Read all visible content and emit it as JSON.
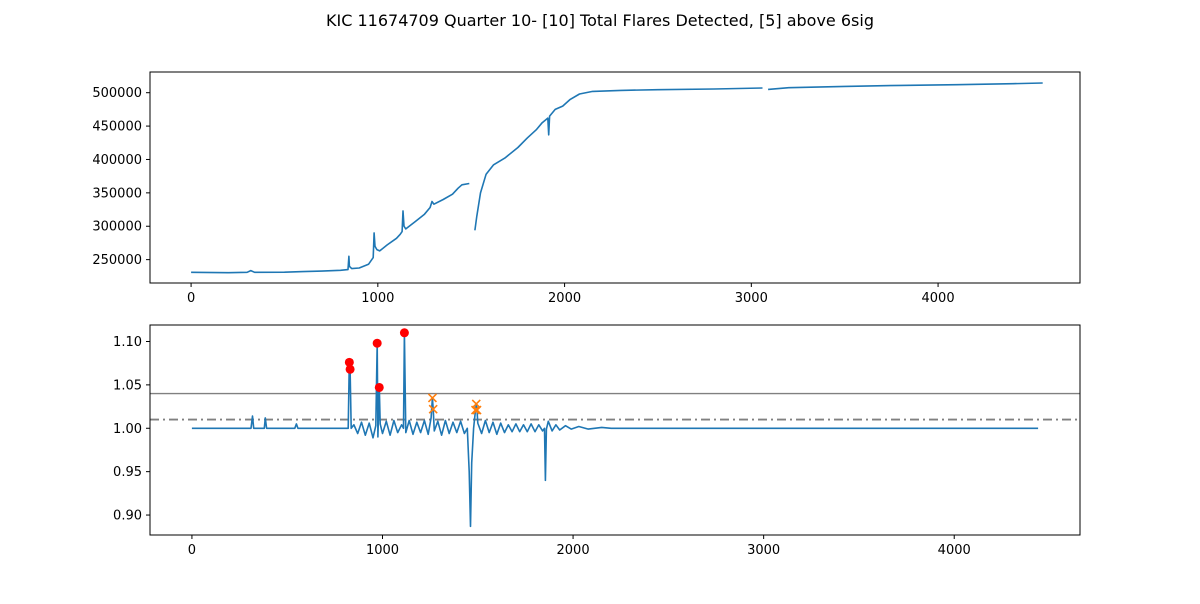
{
  "figure": {
    "title": "KIC 11674709 Quarter 10- [10] Total Flares Detected, [5] above 6sig"
  },
  "colors": {
    "series": "#1f77b4",
    "strong_flare": "#ff0000",
    "weak_flare": "#ff7f0e",
    "threshold": "#808080",
    "frame": "#000000"
  },
  "chart_data": [
    {
      "type": "line",
      "panel": "top",
      "title": "",
      "xlabel": "",
      "ylabel": "",
      "xlim": [
        -220,
        4760
      ],
      "ylim": [
        215000,
        531000
      ],
      "xticks": [
        0,
        1000,
        2000,
        3000,
        4000
      ],
      "yticks": [
        250000,
        300000,
        350000,
        400000,
        450000,
        500000
      ],
      "grid": false,
      "series": [
        {
          "segments": [
            [
              [
                0,
                231000
              ],
              [
                200,
                230500
              ],
              [
                300,
                231000
              ],
              [
                320,
                233500
              ],
              [
                340,
                231000
              ],
              [
                500,
                231200
              ],
              [
                600,
                232000
              ],
              [
                700,
                232800
              ],
              [
                800,
                234000
              ],
              [
                840,
                235000
              ],
              [
                845,
                255000
              ],
              [
                848,
                240000
              ],
              [
                860,
                236500
              ],
              [
                900,
                237500
              ],
              [
                950,
                243000
              ],
              [
                975,
                253000
              ],
              [
                980,
                290000
              ],
              [
                985,
                270000
              ],
              [
                995,
                265000
              ],
              [
                1010,
                263000
              ],
              [
                1050,
                272000
              ],
              [
                1100,
                282000
              ],
              [
                1120,
                288000
              ],
              [
                1130,
                292000
              ],
              [
                1135,
                323000
              ],
              [
                1140,
                300000
              ],
              [
                1150,
                296000
              ],
              [
                1200,
                307000
              ],
              [
                1250,
                318000
              ],
              [
                1280,
                328000
              ],
              [
                1290,
                337000
              ],
              [
                1300,
                333000
              ],
              [
                1350,
                340000
              ],
              [
                1400,
                348000
              ],
              [
                1430,
                357000
              ],
              [
                1450,
                362000
              ],
              [
                1490,
                364000
              ]
            ],
            [
              [
                1520,
                294000
              ],
              [
                1530,
                315000
              ],
              [
                1550,
                350000
              ],
              [
                1580,
                378000
              ],
              [
                1620,
                392000
              ],
              [
                1680,
                402000
              ],
              [
                1750,
                418000
              ],
              [
                1800,
                432000
              ],
              [
                1850,
                445000
              ],
              [
                1880,
                455000
              ],
              [
                1910,
                462000
              ],
              [
                1915,
                437000
              ],
              [
                1920,
                465000
              ],
              [
                1950,
                475000
              ],
              [
                1990,
                480000
              ],
              [
                2030,
                490000
              ],
              [
                2080,
                498000
              ],
              [
                2150,
                502000
              ],
              [
                2300,
                503500
              ],
              [
                2500,
                504500
              ],
              [
                2800,
                505500
              ],
              [
                3060,
                507000
              ]
            ],
            [
              [
                3090,
                505000
              ],
              [
                3200,
                507500
              ],
              [
                3500,
                509500
              ],
              [
                3800,
                511000
              ],
              [
                4100,
                512000
              ],
              [
                4400,
                513500
              ],
              [
                4560,
                514500
              ]
            ]
          ]
        }
      ]
    },
    {
      "type": "line",
      "panel": "bottom",
      "title": "",
      "xlabel": "",
      "ylabel": "",
      "xlim": [
        -220,
        4660
      ],
      "ylim": [
        0.877,
        1.119
      ],
      "xticks": [
        0,
        1000,
        2000,
        3000,
        4000
      ],
      "yticks": [
        0.9,
        0.95,
        1.0,
        1.05,
        1.1
      ],
      "grid": false,
      "hlines": [
        {
          "y": 1.04,
          "style": "solid"
        },
        {
          "y": 1.01,
          "style": "dashdot"
        }
      ],
      "series": [
        {
          "points": [
            [
              0,
              1.0
            ],
            [
              310,
              1.0
            ],
            [
              318,
              1.014
            ],
            [
              324,
              1.0
            ],
            [
              380,
              1.0
            ],
            [
              385,
              1.012
            ],
            [
              392,
              1.0
            ],
            [
              540,
              1.0
            ],
            [
              548,
              1.005
            ],
            [
              556,
              1.0
            ],
            [
              820,
              1.0
            ],
            [
              826,
              1.076
            ],
            [
              830,
              1.068
            ],
            [
              836,
              1.0
            ],
            [
              850,
              1.004
            ],
            [
              870,
              0.994
            ],
            [
              890,
              1.007
            ],
            [
              910,
              0.992
            ],
            [
              930,
              1.006
            ],
            [
              950,
              0.989
            ],
            [
              965,
              1.003
            ],
            [
              972,
              1.098
            ],
            [
              976,
              0.99
            ],
            [
              983,
              1.047
            ],
            [
              988,
              1.005
            ],
            [
              1000,
              0.994
            ],
            [
              1020,
              1.008
            ],
            [
              1040,
              0.992
            ],
            [
              1060,
              1.009
            ],
            [
              1080,
              0.995
            ],
            [
              1100,
              1.004
            ],
            [
              1110,
              1.0
            ],
            [
              1115,
              1.11
            ],
            [
              1122,
              0.995
            ],
            [
              1140,
              1.009
            ],
            [
              1160,
              0.993
            ],
            [
              1180,
              1.007
            ],
            [
              1200,
              0.995
            ],
            [
              1220,
              1.009
            ],
            [
              1240,
              0.993
            ],
            [
              1255,
              1.012
            ],
            [
              1262,
              1.035
            ],
            [
              1266,
              1.022
            ],
            [
              1272,
              0.997
            ],
            [
              1290,
              1.008
            ],
            [
              1310,
              0.992
            ],
            [
              1330,
              1.009
            ],
            [
              1350,
              0.994
            ],
            [
              1370,
              1.007
            ],
            [
              1390,
              0.995
            ],
            [
              1410,
              1.008
            ],
            [
              1430,
              0.994
            ],
            [
              1445,
              1.0
            ],
            [
              1455,
              0.95
            ],
            [
              1462,
              0.887
            ],
            [
              1468,
              0.96
            ],
            [
              1478,
              1.0
            ],
            [
              1488,
              1.021
            ],
            [
              1492,
              1.028
            ],
            [
              1496,
              1.021
            ],
            [
              1500,
              1.006
            ],
            [
              1520,
              0.994
            ],
            [
              1540,
              1.009
            ],
            [
              1560,
              0.995
            ],
            [
              1580,
              1.007
            ],
            [
              1600,
              0.993
            ],
            [
              1620,
              1.006
            ],
            [
              1640,
              0.995
            ],
            [
              1660,
              1.004
            ],
            [
              1680,
              0.996
            ],
            [
              1700,
              1.005
            ],
            [
              1720,
              0.996
            ],
            [
              1740,
              1.004
            ],
            [
              1760,
              0.996
            ],
            [
              1780,
              1.005
            ],
            [
              1800,
              0.996
            ],
            [
              1820,
              1.004
            ],
            [
              1840,
              0.997
            ],
            [
              1850,
              1.0
            ],
            [
              1855,
              0.94
            ],
            [
              1860,
              0.999
            ],
            [
              1870,
              1.008
            ],
            [
              1890,
              0.997
            ],
            [
              1910,
              1.004
            ],
            [
              1930,
              0.998
            ],
            [
              1960,
              1.003
            ],
            [
              1990,
              0.999
            ],
            [
              2030,
              1.002
            ],
            [
              2080,
              0.999
            ],
            [
              2150,
              1.001
            ],
            [
              2200,
              1.0
            ],
            [
              3000,
              1.0
            ],
            [
              4000,
              1.0
            ],
            [
              4440,
              1.0
            ]
          ]
        }
      ],
      "strong_flares": [
        [
          826,
          1.076
        ],
        [
          830,
          1.068
        ],
        [
          972,
          1.098
        ],
        [
          983,
          1.047
        ],
        [
          1115,
          1.11
        ]
      ],
      "weak_flares": [
        [
          1262,
          1.035
        ],
        [
          1266,
          1.022
        ],
        [
          1488,
          1.021
        ],
        [
          1492,
          1.028
        ],
        [
          1496,
          1.021
        ]
      ]
    }
  ]
}
